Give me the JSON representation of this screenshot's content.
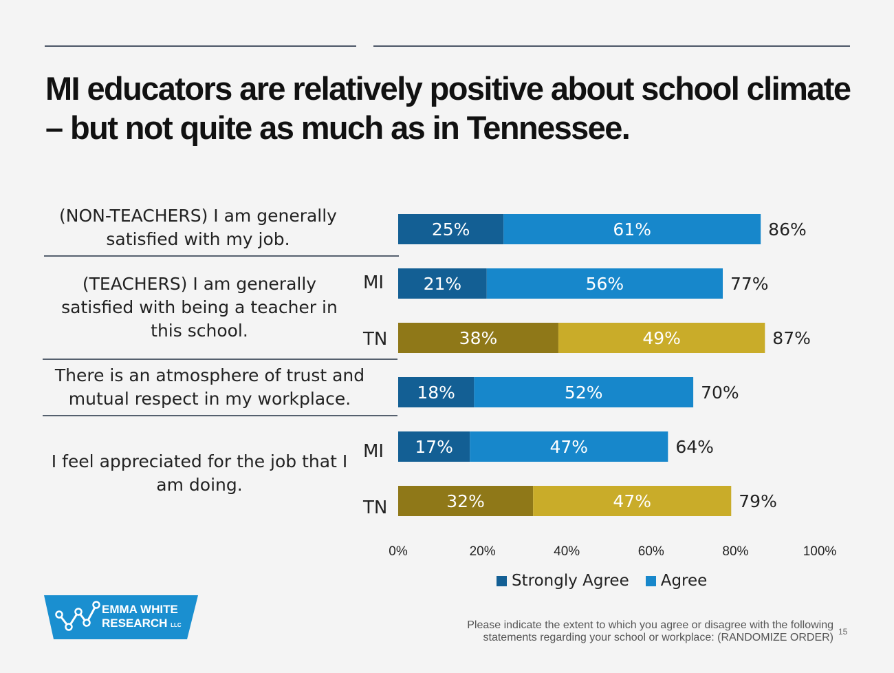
{
  "title": {
    "line1": "MI educators are relatively positive about school climate",
    "line2": "– but not quite as much as in Tennessee."
  },
  "questions": {
    "q1": {
      "line1": "(NON-TEACHERS) I am generally",
      "line2": "satisfied with my job."
    },
    "q2": {
      "line1": "(TEACHERS) I am generally",
      "line2": "satisfied with being a teacher in",
      "line3": "this school."
    },
    "q3": {
      "line1": "There is an atmosphere of trust and",
      "line2": "mutual respect in my workplace."
    },
    "q4": {
      "line1": "I feel appreciated for the job that I",
      "line2": "am doing."
    }
  },
  "groups": {
    "q2_mi": "MI",
    "q2_tn": "TN",
    "q4_mi": "MI",
    "q4_tn": "TN"
  },
  "colors": {
    "mi_strongly": "#135f94",
    "mi_agree": "#1787cb",
    "tn_strongly": "#8f7818",
    "tn_agree": "#c9ac29"
  },
  "chart_data": {
    "type": "bar",
    "orientation": "horizontal",
    "stacked": true,
    "xlim": [
      0,
      100
    ],
    "x_ticks": [
      "0%",
      "20%",
      "40%",
      "60%",
      "80%",
      "100%"
    ],
    "rows": [
      {
        "question": "(NON-TEACHERS) I am generally satisfied with my job.",
        "group": "",
        "strongly_agree": 25,
        "agree": 61,
        "total": 86,
        "palette": "mi"
      },
      {
        "question": "(TEACHERS) I am generally satisfied with being a teacher in this school.",
        "group": "MI",
        "strongly_agree": 21,
        "agree": 56,
        "total": 77,
        "palette": "mi"
      },
      {
        "question": "(TEACHERS) I am generally satisfied with being a teacher in this school.",
        "group": "TN",
        "strongly_agree": 38,
        "agree": 49,
        "total": 87,
        "palette": "tn"
      },
      {
        "question": "There is an atmosphere of trust and mutual respect in my workplace.",
        "group": "",
        "strongly_agree": 18,
        "agree": 52,
        "total": 70,
        "palette": "mi"
      },
      {
        "question": "I feel appreciated for the job that I am doing.",
        "group": "MI",
        "strongly_agree": 17,
        "agree": 47,
        "total": 64,
        "palette": "mi"
      },
      {
        "question": "I feel appreciated for the job that I am doing.",
        "group": "TN",
        "strongly_agree": 32,
        "agree": 47,
        "total": 79,
        "palette": "tn"
      }
    ],
    "legend": {
      "placement": "bottom",
      "items": [
        "Strongly Agree",
        "Agree"
      ]
    }
  },
  "logo": {
    "line1": "EMMA WHITE",
    "line2": "RESEARCH",
    "suffix": "LLC"
  },
  "footnote": {
    "line1": "Please indicate the extent to which you agree or disagree with the following",
    "line2": "statements regarding your school or workplace: (RANDOMIZE ORDER)"
  },
  "page_number": "15"
}
